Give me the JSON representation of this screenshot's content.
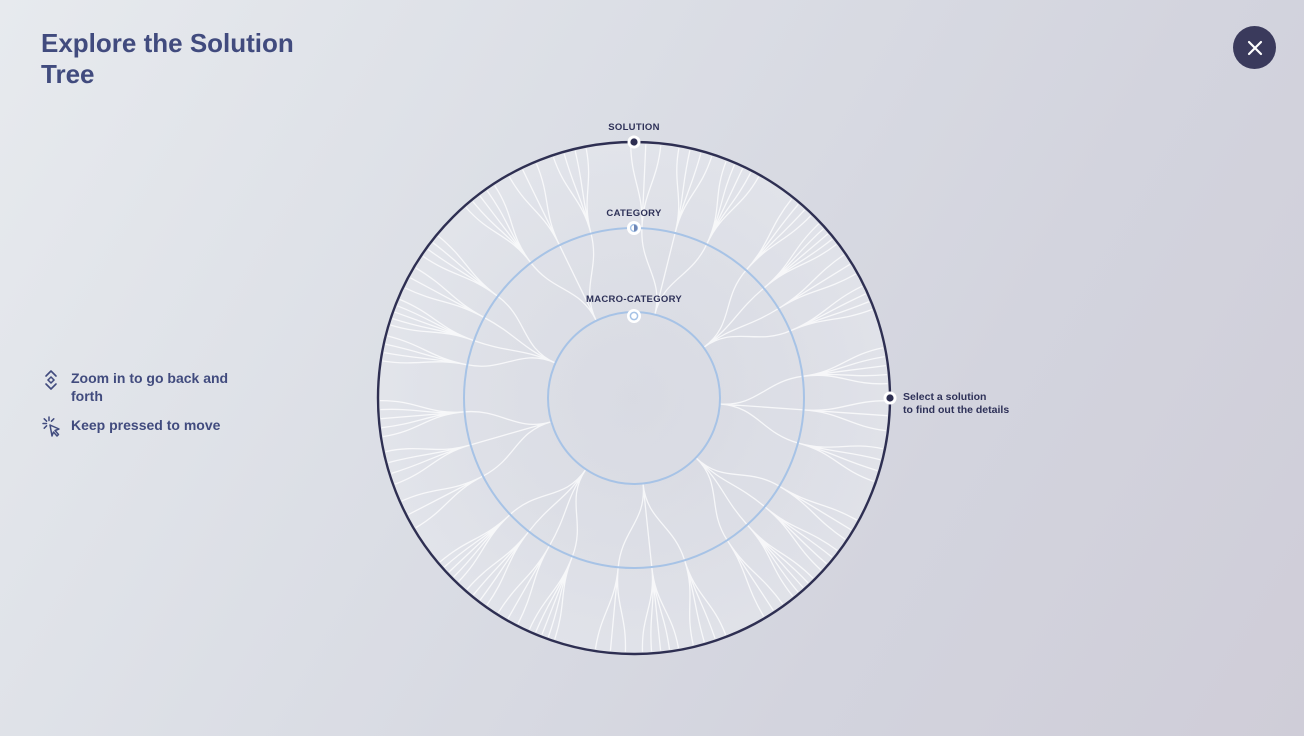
{
  "header": {
    "title": "Explore the Solution\nTree",
    "close_icon": "close-icon"
  },
  "hints": {
    "zoom": {
      "icon": "zoom-arrows-icon",
      "label": "Zoom in to go back and forth"
    },
    "move": {
      "icon": "pointer-click-icon",
      "label": "Keep pressed to move"
    }
  },
  "tree": {
    "rings": {
      "solution": "SOLUTION",
      "category": "CATEGORY",
      "macro_category": "MACRO-CATEGORY"
    },
    "select_hint_line1": "Select a solution",
    "select_hint_line2": "to find out the details"
  },
  "colors": {
    "title": "#414b7e",
    "outer_ring": "#2e2f52",
    "inner_rings": "#a7c3e6",
    "close_button": "#3a3a5c",
    "branches": "#ffffff"
  }
}
